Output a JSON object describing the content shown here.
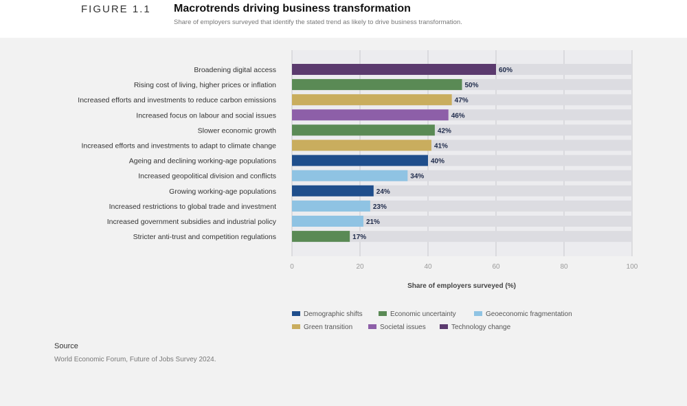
{
  "figure": {
    "label": "FIGURE 1.1",
    "title": "Macrotrends driving business transformation",
    "subtitle": "Share of employers surveyed that identify the stated trend as likely to drive business transformation."
  },
  "colors": {
    "Demographic shifts": "#1f4e8c",
    "Economic uncertainty": "#5a8a55",
    "Geoeconomic fragmentation": "#8fc3e3",
    "Green transition": "#c9ad5e",
    "Societal issues": "#8d5fa8",
    "Technology change": "#5b3a6e",
    "track": "#dcdce1",
    "grid": "#c8c8cc"
  },
  "chart_data": {
    "type": "bar",
    "orientation": "horizontal",
    "title": "Macrotrends driving business transformation",
    "xlabel": "Share of employers surveyed (%)",
    "ylabel": "",
    "xlim": [
      0,
      100
    ],
    "xticks": [
      0,
      20,
      40,
      60,
      80,
      100
    ],
    "grid": true,
    "legend_position": "bottom",
    "value_suffix": "%",
    "categories": [
      "Broadening digital access",
      "Rising cost of living, higher prices or inflation",
      "Increased efforts and investments to reduce carbon emissions",
      "Increased focus on labour and social issues",
      "Slower economic growth",
      "Increased efforts and investments to adapt to climate change",
      "Ageing and declining working-age populations",
      "Increased geopolitical division and conflicts",
      "Growing working-age populations",
      "Increased restrictions to global trade and investment",
      "Increased government subsidies and industrial policy",
      "Stricter anti-trust and competition regulations"
    ],
    "values": [
      60,
      50,
      47,
      46,
      42,
      41,
      40,
      34,
      24,
      23,
      21,
      17
    ],
    "groups": [
      "Technology change",
      "Economic uncertainty",
      "Green transition",
      "Societal issues",
      "Economic uncertainty",
      "Green transition",
      "Demographic shifts",
      "Geoeconomic fragmentation",
      "Demographic shifts",
      "Geoeconomic fragmentation",
      "Geoeconomic fragmentation",
      "Economic uncertainty"
    ],
    "legend": [
      "Demographic shifts",
      "Economic uncertainty",
      "Geoeconomic fragmentation",
      "Green transition",
      "Societal issues",
      "Technology change"
    ]
  },
  "source": {
    "heading": "Source",
    "text": "World Economic Forum, Future of Jobs Survey 2024."
  }
}
